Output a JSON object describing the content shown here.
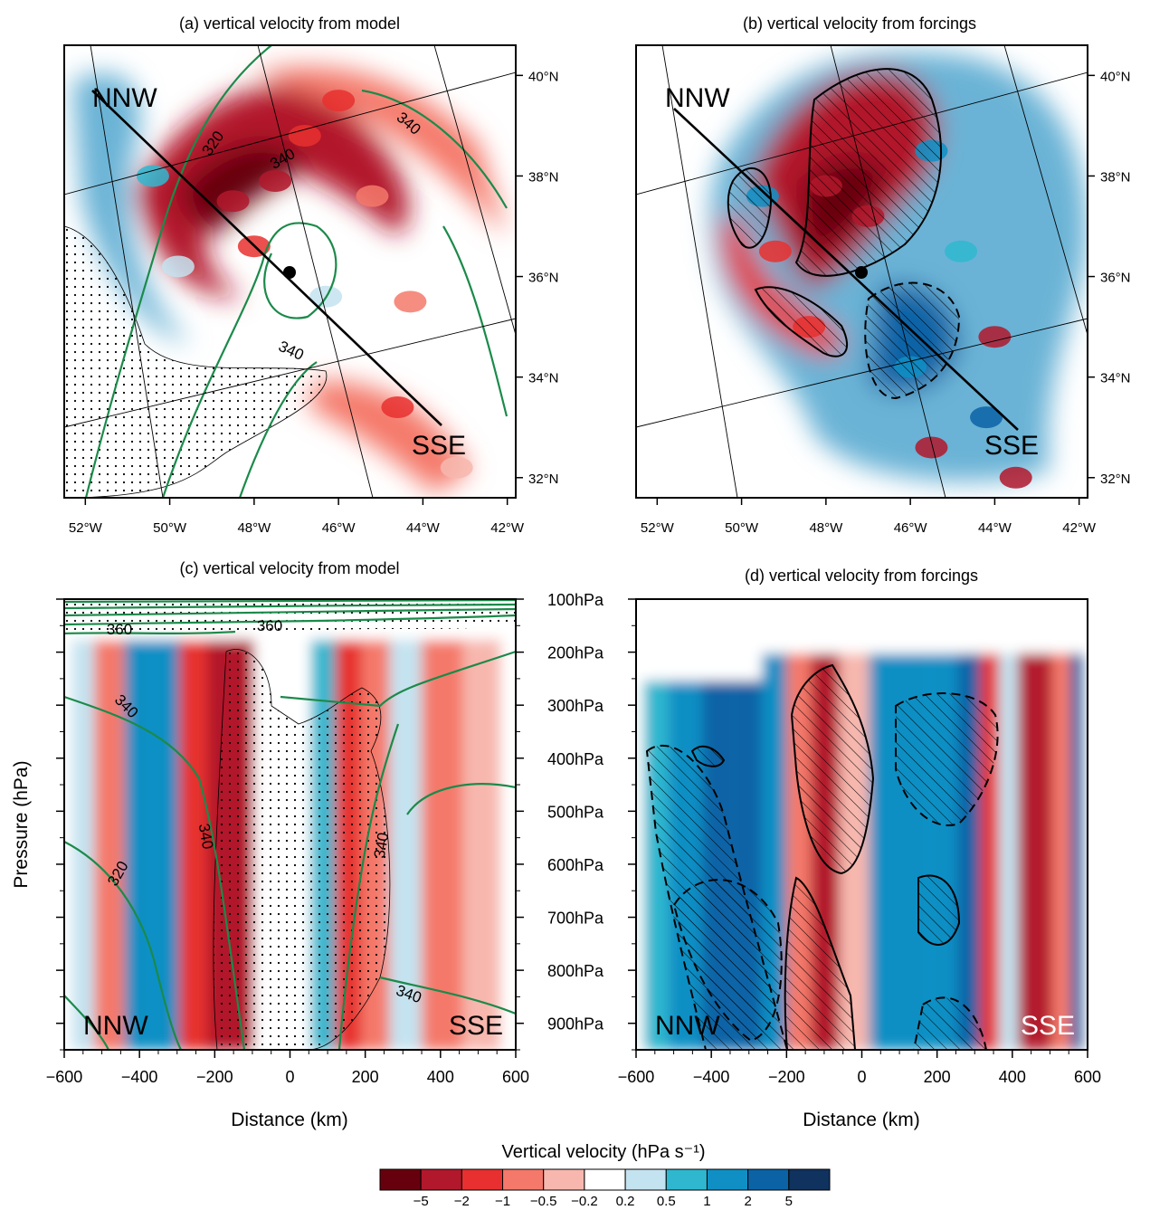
{
  "figure": {
    "colorbar": {
      "title": "Vertical velocity (hPa s⁻¹)",
      "colors": [
        "#67000d",
        "#b2182b",
        "#e7302f",
        "#f4796b",
        "#f7b7ae",
        "#ffffff",
        "#c4e3f0",
        "#2fb7cf",
        "#0f8fc4",
        "#0b63a6",
        "#10325e"
      ],
      "tick_labels": [
        "−5",
        "−2",
        "−1",
        "−0.5",
        "−0.2",
        "0.2",
        "0.5",
        "1",
        "2",
        "5"
      ]
    }
  },
  "chart_data": [
    {
      "id": "a",
      "type": "heatmap",
      "title": "(a)  vertical velocity from model",
      "x_tick_labels": [
        "52°W",
        "50°W",
        "48°W",
        "46°W",
        "44°W",
        "42°W"
      ],
      "y_tick_labels": [
        "40°N",
        "38°N",
        "36°N",
        "34°N",
        "32°N"
      ],
      "x_range": [
        -52.5,
        -41.8
      ],
      "y_range": [
        31.6,
        40.6
      ],
      "cross_section": {
        "start_label": "NNW",
        "end_label": "SSE",
        "center": [
          -47.0,
          35.9
        ]
      },
      "contour_labels": [
        "320",
        "340",
        "340",
        "340"
      ],
      "cells": [
        {
          "lon": -48.5,
          "lat": 37.5,
          "value": -3.0
        },
        {
          "lon": -47.5,
          "lat": 37.9,
          "value": -2.5
        },
        {
          "lon": -46.8,
          "lat": 38.8,
          "value": -1.8
        },
        {
          "lon": -48.0,
          "lat": 36.6,
          "value": -1.6
        },
        {
          "lon": -46.0,
          "lat": 39.5,
          "value": -1.2
        },
        {
          "lon": -45.2,
          "lat": 37.6,
          "value": -0.6
        },
        {
          "lon": -44.3,
          "lat": 35.5,
          "value": -0.5
        },
        {
          "lon": -44.6,
          "lat": 33.4,
          "value": -1.0
        },
        {
          "lon": -43.2,
          "lat": 32.2,
          "value": -0.4
        },
        {
          "lon": -50.4,
          "lat": 38.0,
          "value": 0.6
        },
        {
          "lon": -49.8,
          "lat": 36.2,
          "value": 0.4
        },
        {
          "lon": -46.3,
          "lat": 35.6,
          "value": 0.3
        }
      ]
    },
    {
      "id": "b",
      "type": "heatmap",
      "title": "(b)  vertical velocity from forcings",
      "x_tick_labels": [
        "52°W",
        "50°W",
        "48°W",
        "46°W",
        "44°W",
        "42°W"
      ],
      "y_tick_labels": [
        "40°N",
        "38°N",
        "36°N",
        "34°N",
        "32°N"
      ],
      "x_range": [
        -52.5,
        -41.8
      ],
      "y_range": [
        31.6,
        40.6
      ],
      "cross_section": {
        "start_label": "NNW",
        "end_label": "SSE",
        "center": [
          -47.0,
          35.9
        ]
      },
      "cells": [
        {
          "lon": -48.0,
          "lat": 37.8,
          "value": -2.5
        },
        {
          "lon": -47.0,
          "lat": 37.2,
          "value": -4.0
        },
        {
          "lon": -49.2,
          "lat": 36.5,
          "value": -1.5
        },
        {
          "lon": -48.4,
          "lat": 35.0,
          "value": -1.2
        },
        {
          "lon": -44.0,
          "lat": 34.8,
          "value": -3.0
        },
        {
          "lon": -45.5,
          "lat": 32.6,
          "value": -2.0
        },
        {
          "lon": -43.5,
          "lat": 32.0,
          "value": -4.0
        },
        {
          "lon": -46.0,
          "lat": 34.2,
          "value": 1.5
        },
        {
          "lon": -45.5,
          "lat": 38.5,
          "value": 2.0
        },
        {
          "lon": -44.8,
          "lat": 36.5,
          "value": 0.8
        },
        {
          "lon": -44.2,
          "lat": 33.2,
          "value": 2.5
        },
        {
          "lon": -49.5,
          "lat": 37.6,
          "value": 1.2
        }
      ]
    },
    {
      "id": "c",
      "type": "heatmap",
      "title": "(c)  vertical velocity from model",
      "xlabel": "Distance (km)",
      "ylabel": "Pressure (hPa)",
      "x_tick_labels": [
        "−600",
        "−400",
        "−200",
        "0",
        "200",
        "400",
        "600"
      ],
      "y_tick_labels": [
        "100hPa",
        "200hPa",
        "300hPa",
        "400hPa",
        "500hPa",
        "600hPa",
        "700hPa",
        "800hPa",
        "900hPa"
      ],
      "x_range": [
        -600,
        600
      ],
      "y_range": [
        950,
        100
      ],
      "left_label": "NNW",
      "right_label": "SSE",
      "contour_labels": [
        "360",
        "360",
        "340",
        "340",
        "320",
        "340",
        "340"
      ],
      "columns": [
        {
          "x": -560,
          "value": 0.3
        },
        {
          "x": -480,
          "value": -0.5
        },
        {
          "x": -400,
          "value": 1.2
        },
        {
          "x": -330,
          "value": 2.0
        },
        {
          "x": -260,
          "value": -1.5
        },
        {
          "x": -180,
          "value": -4.0
        },
        {
          "x": -130,
          "value": -2.0
        },
        {
          "x": -60,
          "value": 0.1
        },
        {
          "x": 20,
          "value": 0.2
        },
        {
          "x": 90,
          "value": 0.8
        },
        {
          "x": 150,
          "value": -1.2
        },
        {
          "x": 230,
          "value": -0.6
        },
        {
          "x": 300,
          "value": 0.3
        },
        {
          "x": 400,
          "value": -0.7
        },
        {
          "x": 520,
          "value": -0.4
        }
      ]
    },
    {
      "id": "d",
      "type": "heatmap",
      "title": "(d)  vertical velocity from forcings",
      "xlabel": "Distance (km)",
      "x_tick_labels": [
        "−600",
        "−400",
        "−200",
        "0",
        "200",
        "400",
        "600"
      ],
      "x_range": [
        -600,
        600
      ],
      "y_range": [
        950,
        100
      ],
      "left_label": "NNW",
      "right_label": "SSE",
      "columns": [
        {
          "x": -560,
          "value": 0.8
        },
        {
          "x": -470,
          "value": 1.5
        },
        {
          "x": -380,
          "value": 3.0
        },
        {
          "x": -300,
          "value": 5.0
        },
        {
          "x": -230,
          "value": 1.2
        },
        {
          "x": -170,
          "value": -0.8
        },
        {
          "x": -100,
          "value": -3.0
        },
        {
          "x": -20,
          "value": -0.3
        },
        {
          "x": 60,
          "value": 1.5
        },
        {
          "x": 140,
          "value": 2.0
        },
        {
          "x": 220,
          "value": 1.8
        },
        {
          "x": 290,
          "value": 2.5
        },
        {
          "x": 340,
          "value": -1.5
        },
        {
          "x": 390,
          "value": 0.5
        },
        {
          "x": 440,
          "value": -2.0
        },
        {
          "x": 480,
          "value": -4.0
        },
        {
          "x": 530,
          "value": -0.5
        },
        {
          "x": 580,
          "value": 3.0
        }
      ]
    }
  ]
}
